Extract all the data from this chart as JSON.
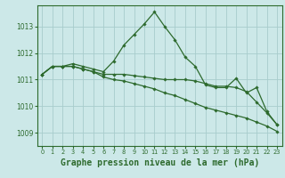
{
  "background_color": "#cce8e8",
  "grid_color": "#a8cccc",
  "line_color": "#2d6a2d",
  "xlabel": "Graphe pression niveau de la mer (hPa)",
  "xlabel_fontsize": 7,
  "ylim": [
    1008.5,
    1013.8
  ],
  "yticks": [
    1009,
    1010,
    1011,
    1012,
    1013
  ],
  "xlim": [
    -0.5,
    23.5
  ],
  "xticks": [
    0,
    1,
    2,
    3,
    4,
    5,
    6,
    7,
    8,
    9,
    10,
    11,
    12,
    13,
    14,
    15,
    16,
    17,
    18,
    19,
    20,
    21,
    22,
    23
  ],
  "series": [
    [
      1011.2,
      1011.5,
      1011.5,
      1011.6,
      1011.5,
      1011.4,
      1011.3,
      1011.7,
      1012.3,
      1012.7,
      1013.1,
      1013.55,
      1013.0,
      1012.5,
      1011.85,
      1011.5,
      1010.8,
      1010.7,
      1010.7,
      1011.05,
      1010.5,
      1010.7,
      1009.8,
      1009.3
    ],
    [
      1011.2,
      1011.5,
      1011.5,
      1011.5,
      1011.4,
      1011.3,
      1011.2,
      1011.2,
      1011.2,
      1011.15,
      1011.1,
      1011.05,
      1011.0,
      1011.0,
      1011.0,
      1010.95,
      1010.85,
      1010.75,
      1010.75,
      1010.7,
      1010.55,
      1010.15,
      1009.75,
      1009.3
    ],
    [
      1011.2,
      1011.5,
      1011.5,
      1011.5,
      1011.4,
      1011.3,
      1011.1,
      1011.0,
      1010.95,
      1010.85,
      1010.75,
      1010.65,
      1010.5,
      1010.4,
      1010.25,
      1010.1,
      1009.95,
      1009.85,
      1009.75,
      1009.65,
      1009.55,
      1009.4,
      1009.25,
      1009.05
    ]
  ]
}
